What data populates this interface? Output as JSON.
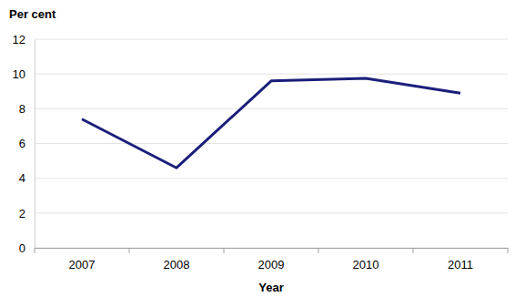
{
  "chart_data": {
    "type": "line",
    "y_label": "Per cent",
    "x_label": "Year",
    "categories": [
      "2007",
      "2008",
      "2009",
      "2010",
      "2011"
    ],
    "values": [
      7.4,
      4.6,
      9.6,
      9.75,
      8.9
    ],
    "color": "#1b1f7a",
    "ylim": [
      0,
      12
    ],
    "yticks": [
      0,
      2,
      4,
      6,
      8,
      10,
      12
    ],
    "grid": true
  }
}
